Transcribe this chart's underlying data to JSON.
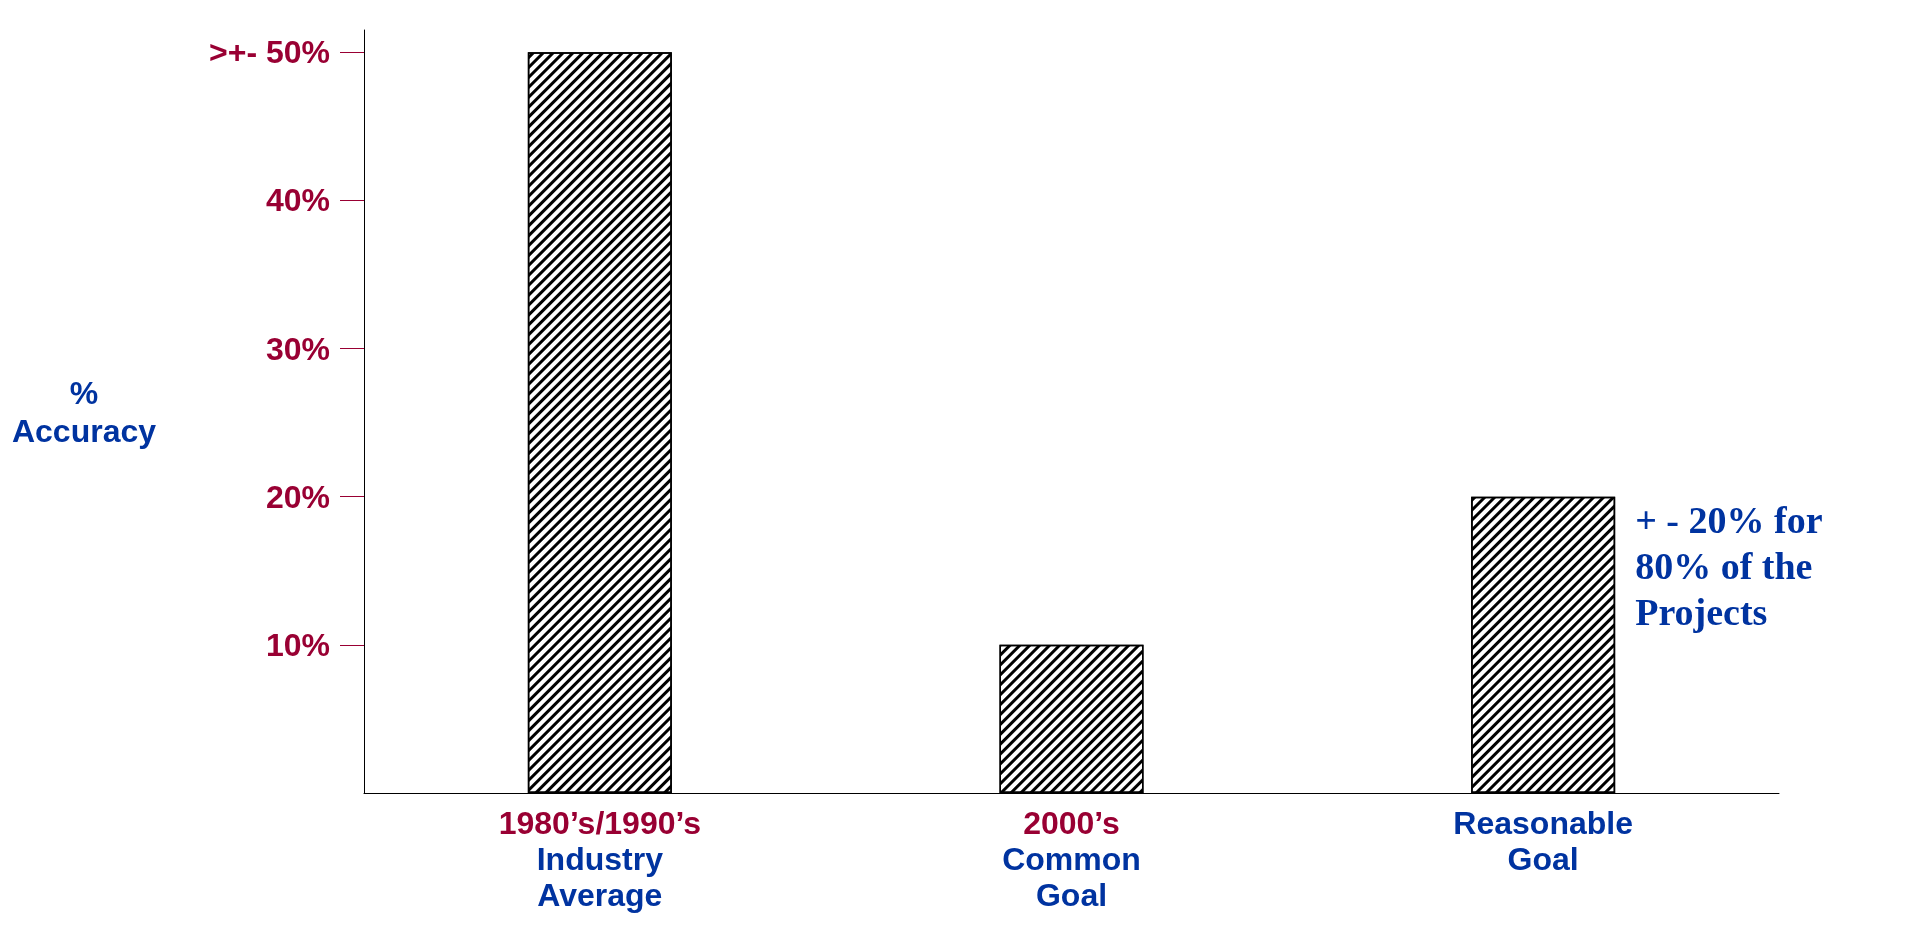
{
  "chart_data": {
    "type": "bar",
    "ylabel": "% Accuracy",
    "categories": [
      "1980’s/1990’s Industry Average",
      "2000’s Common Goal",
      "Reasonable Goal"
    ],
    "values": [
      50,
      10,
      20
    ],
    "color": "#000000",
    "ylim": [
      0,
      51.5
    ],
    "yticks": [
      {
        "value": 10,
        "label": "10%"
      },
      {
        "value": 20,
        "label": "20%"
      },
      {
        "value": 30,
        "label": "30%"
      },
      {
        "value": 40,
        "label": "40%"
      },
      {
        "value": 50,
        "label": ">+- 50%"
      }
    ],
    "annotations": [
      {
        "text": "+ - 20% for 80% of the Projects",
        "x": "Reasonable Goal",
        "y": 20
      }
    ],
    "grid": false
  }
}
